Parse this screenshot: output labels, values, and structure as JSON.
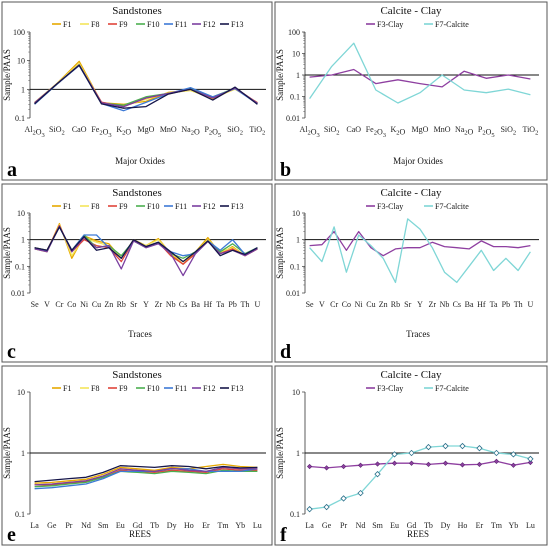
{
  "chart_data": [
    {
      "id": "a",
      "type": "line",
      "panel_letter": "a",
      "title": "Sandstones",
      "xlabel": "Major Oxides",
      "ylabel": "Sample/PAAS",
      "scale": "log",
      "ylim": [
        0.1,
        100
      ],
      "yticks": [
        "0.1",
        "1",
        "10",
        "100"
      ],
      "reference_line": 1,
      "legend_position": "top",
      "categories": [
        "Al2O3",
        "SiO2",
        "CaO",
        "Fe2O3",
        "K2O",
        "MgO",
        "MnO",
        "Na2O",
        "P2O5",
        "SiO2",
        "TiO2"
      ],
      "series": [
        {
          "name": "F1",
          "color": "#e6a800",
          "values": [
            0.33,
            1.6,
            9.5,
            0.34,
            0.3,
            0.38,
            0.78,
            0.95,
            0.45,
            1.1,
            0.33
          ]
        },
        {
          "name": "F8",
          "color": "#f3e45a",
          "values": [
            0.35,
            1.6,
            8.0,
            0.35,
            0.26,
            0.45,
            0.75,
            0.9,
            0.5,
            1.0,
            0.35
          ]
        },
        {
          "name": "F9",
          "color": "#e0453b",
          "values": [
            0.34,
            1.5,
            7.0,
            0.36,
            0.25,
            0.5,
            0.7,
            1.0,
            0.5,
            1.1,
            0.34
          ]
        },
        {
          "name": "F10",
          "color": "#4caf50",
          "values": [
            0.32,
            1.5,
            7.2,
            0.33,
            0.28,
            0.55,
            0.72,
            1.05,
            0.55,
            1.1,
            0.32
          ]
        },
        {
          "name": "F11",
          "color": "#3d7ad6",
          "values": [
            0.3,
            1.5,
            6.8,
            0.32,
            0.18,
            0.35,
            0.7,
            1.15,
            0.55,
            1.05,
            0.31
          ]
        },
        {
          "name": "F12",
          "color": "#7b3fa0",
          "values": [
            0.34,
            1.55,
            7.1,
            0.34,
            0.25,
            0.5,
            0.72,
            1.0,
            0.5,
            1.1,
            0.33
          ]
        },
        {
          "name": "F13",
          "color": "#16164a",
          "values": [
            0.31,
            1.55,
            6.9,
            0.31,
            0.22,
            0.25,
            0.68,
            1.0,
            0.42,
            1.2,
            0.3
          ]
        }
      ]
    },
    {
      "id": "b",
      "type": "line",
      "panel_letter": "b",
      "title": "Calcite - Clay",
      "xlabel": "Major Oxides",
      "ylabel": "Sample/PAAS",
      "scale": "log",
      "ylim": [
        0.01,
        100
      ],
      "yticks": [
        "0.01",
        "0.1",
        "1",
        "10",
        "100"
      ],
      "reference_line": 1,
      "legend_position": "top",
      "categories": [
        "Al2O3",
        "SiO2",
        "CaO",
        "Fe2O3",
        "K2O",
        "MgO",
        "MnO",
        "Na2O",
        "P2O5",
        "SiO2",
        "TiO2"
      ],
      "series": [
        {
          "name": "F3-Clay",
          "color": "#8e3fa0",
          "values": [
            0.8,
            1.0,
            1.8,
            0.4,
            0.6,
            0.4,
            0.28,
            1.5,
            0.7,
            1.0,
            0.65
          ]
        },
        {
          "name": "F7-Calcite",
          "color": "#7fd6d6",
          "values": [
            0.08,
            2.5,
            30,
            0.2,
            0.05,
            0.15,
            1.0,
            0.2,
            0.15,
            0.22,
            0.12
          ]
        }
      ]
    },
    {
      "id": "c",
      "type": "line",
      "panel_letter": "c",
      "title": "Sandstones",
      "xlabel": "Traces",
      "ylabel": "Sample/PAAS",
      "scale": "log",
      "ylim": [
        0.01,
        10
      ],
      "yticks": [
        "0.01",
        "0.1",
        "1",
        "10"
      ],
      "reference_line": 1,
      "legend_position": "top",
      "categories": [
        "Se",
        "V",
        "Cr",
        "Co",
        "Ni",
        "Cu",
        "Zn",
        "Rb",
        "Sr",
        "Y",
        "Zr",
        "Nb",
        "Cs",
        "Ba",
        "Hf",
        "Ta",
        "Pb",
        "Th",
        "U"
      ],
      "series": [
        {
          "name": "F1",
          "color": "#e6a800",
          "values": [
            0.45,
            0.35,
            4.0,
            0.2,
            1.4,
            0.9,
            0.7,
            0.2,
            1.0,
            0.6,
            1.1,
            0.3,
            0.12,
            0.35,
            1.2,
            0.3,
            0.55,
            0.25,
            0.5
          ]
        },
        {
          "name": "F8",
          "color": "#f3e45a",
          "values": [
            0.45,
            0.35,
            3.6,
            0.25,
            1.2,
            0.8,
            0.6,
            0.2,
            0.9,
            0.6,
            1.0,
            0.3,
            0.15,
            0.35,
            1.0,
            0.35,
            0.5,
            0.25,
            0.45
          ]
        },
        {
          "name": "F9",
          "color": "#e0453b",
          "values": [
            0.5,
            0.4,
            3.4,
            0.35,
            1.0,
            0.6,
            0.5,
            0.15,
            0.9,
            0.55,
            0.8,
            0.25,
            0.12,
            0.3,
            0.9,
            0.3,
            0.45,
            0.25,
            0.45
          ]
        },
        {
          "name": "F10",
          "color": "#4caf50",
          "values": [
            0.5,
            0.4,
            3.0,
            0.4,
            1.5,
            0.5,
            0.6,
            0.25,
            0.9,
            0.5,
            0.75,
            0.3,
            0.2,
            0.35,
            0.85,
            0.35,
            0.7,
            0.3,
            0.5
          ]
        },
        {
          "name": "F11",
          "color": "#3d7ad6",
          "values": [
            0.45,
            0.38,
            3.0,
            0.4,
            1.5,
            1.5,
            0.5,
            0.2,
            0.9,
            0.55,
            0.8,
            0.35,
            0.25,
            0.3,
            0.9,
            0.4,
            1.0,
            0.28,
            0.5
          ]
        },
        {
          "name": "F12",
          "color": "#7b3fa0",
          "values": [
            0.45,
            0.35,
            3.2,
            0.35,
            1.2,
            0.5,
            0.6,
            0.08,
            0.9,
            0.5,
            0.7,
            0.3,
            0.045,
            0.3,
            0.85,
            0.3,
            0.4,
            0.25,
            0.45
          ]
        },
        {
          "name": "F13",
          "color": "#16164a",
          "values": [
            0.5,
            0.4,
            3.0,
            0.4,
            1.3,
            0.4,
            0.5,
            0.2,
            1.0,
            0.55,
            0.8,
            0.35,
            0.15,
            0.35,
            0.9,
            0.25,
            0.4,
            0.28,
            0.5
          ]
        }
      ]
    },
    {
      "id": "d",
      "type": "line",
      "panel_letter": "d",
      "title": "Calcite - Clay",
      "xlabel": "Traces",
      "ylabel": "Sample/PAAS",
      "scale": "log",
      "ylim": [
        0.01,
        10
      ],
      "yticks": [
        "0.01",
        "0.1",
        "1",
        "10"
      ],
      "reference_line": 1,
      "legend_position": "top",
      "categories": [
        "Se",
        "V",
        "Cr",
        "Co",
        "Ni",
        "Cu",
        "Zn",
        "Rb",
        "Sr",
        "Y",
        "Zr",
        "Nb",
        "Cs",
        "Ba",
        "Hf",
        "Ta",
        "Pb",
        "Th",
        "U"
      ],
      "series": [
        {
          "name": "F3-Clay",
          "color": "#8e3fa0",
          "values": [
            0.6,
            0.65,
            2.0,
            0.4,
            2.0,
            0.5,
            0.25,
            0.45,
            0.5,
            0.5,
            0.8,
            0.55,
            0.5,
            0.45,
            0.9,
            0.55,
            0.55,
            0.5,
            0.6
          ]
        },
        {
          "name": "F7-Calcite",
          "color": "#7fd6d6",
          "values": [
            0.5,
            0.15,
            3.0,
            0.06,
            1.5,
            0.6,
            0.2,
            0.025,
            6.0,
            2.5,
            0.5,
            0.06,
            0.025,
            0.1,
            0.4,
            0.07,
            0.2,
            0.07,
            0.35
          ]
        }
      ]
    },
    {
      "id": "e",
      "type": "line",
      "panel_letter": "e",
      "title": "Sandstones",
      "xlabel": "REES",
      "ylabel": "Sample/PAAS",
      "scale": "log",
      "ylim": [
        0.1,
        10
      ],
      "yticks": [
        "0.1",
        "1",
        "10"
      ],
      "reference_line": 1,
      "legend_position": "top",
      "categories": [
        "La",
        "Ge",
        "Pr",
        "Nd",
        "Sm",
        "Eu",
        "Gd",
        "Tb",
        "Dy",
        "Ho",
        "Er",
        "Tm",
        "Yb",
        "Lu"
      ],
      "series": [
        {
          "name": "F1",
          "color": "#e6a800",
          "values": [
            0.32,
            0.33,
            0.35,
            0.37,
            0.45,
            0.58,
            0.55,
            0.52,
            0.58,
            0.55,
            0.6,
            0.65,
            0.6,
            0.58
          ]
        },
        {
          "name": "F8",
          "color": "#f3e45a",
          "values": [
            0.3,
            0.31,
            0.33,
            0.35,
            0.42,
            0.55,
            0.52,
            0.5,
            0.55,
            0.52,
            0.5,
            0.58,
            0.55,
            0.55
          ]
        },
        {
          "name": "F9",
          "color": "#e0453b",
          "values": [
            0.3,
            0.3,
            0.32,
            0.34,
            0.4,
            0.52,
            0.5,
            0.48,
            0.52,
            0.5,
            0.48,
            0.55,
            0.52,
            0.52
          ]
        },
        {
          "name": "F10",
          "color": "#4caf50",
          "values": [
            0.28,
            0.29,
            0.31,
            0.33,
            0.4,
            0.5,
            0.48,
            0.46,
            0.5,
            0.48,
            0.46,
            0.52,
            0.5,
            0.5
          ]
        },
        {
          "name": "F11",
          "color": "#3d7ad6",
          "values": [
            0.26,
            0.27,
            0.29,
            0.31,
            0.38,
            0.5,
            0.5,
            0.5,
            0.55,
            0.55,
            0.5,
            0.5,
            0.5,
            0.55
          ]
        },
        {
          "name": "F12",
          "color": "#7b3fa0",
          "values": [
            0.3,
            0.31,
            0.33,
            0.35,
            0.42,
            0.55,
            0.52,
            0.5,
            0.56,
            0.52,
            0.5,
            0.58,
            0.55,
            0.55
          ]
        },
        {
          "name": "F13",
          "color": "#16164a",
          "values": [
            0.34,
            0.36,
            0.38,
            0.4,
            0.48,
            0.62,
            0.6,
            0.58,
            0.62,
            0.6,
            0.55,
            0.6,
            0.57,
            0.58
          ]
        }
      ]
    },
    {
      "id": "f",
      "type": "line",
      "panel_letter": "f",
      "title": "Calcite - Clay",
      "xlabel": "REES",
      "ylabel": "Sample/PAAS",
      "scale": "log",
      "ylim": [
        0.1,
        10
      ],
      "yticks": [
        "0.1",
        "1",
        "10"
      ],
      "reference_line": 1,
      "legend_position": "top",
      "categories": [
        "La",
        "Ge",
        "Pr",
        "Nd",
        "Sm",
        "Eu",
        "Gd",
        "Tb",
        "Dy",
        "Ho",
        "Er",
        "Tm",
        "Yb",
        "Lu"
      ],
      "series": [
        {
          "name": "F3-Clay",
          "color": "#8e3fa0",
          "values": [
            0.6,
            0.57,
            0.6,
            0.63,
            0.66,
            0.68,
            0.68,
            0.65,
            0.68,
            0.64,
            0.65,
            0.73,
            0.63,
            0.7
          ]
        },
        {
          "name": "F7-Calcite",
          "color": "#7fd6d6",
          "values": [
            0.12,
            0.13,
            0.18,
            0.22,
            0.45,
            0.95,
            1.0,
            1.25,
            1.3,
            1.3,
            1.2,
            1.0,
            0.95,
            0.8
          ]
        }
      ]
    }
  ]
}
